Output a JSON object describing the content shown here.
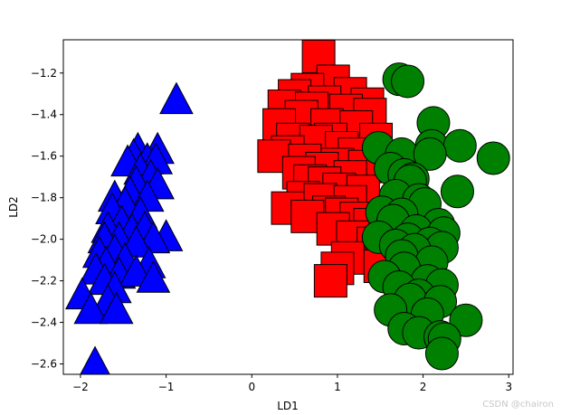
{
  "chart_data": {
    "type": "scatter",
    "title": "",
    "xlabel": "LD1",
    "ylabel": "LD2",
    "xlim": [
      -2.2,
      3.05
    ],
    "ylim": [
      -2.65,
      -1.04
    ],
    "xticks": [
      -2,
      -1,
      0,
      1,
      2,
      3
    ],
    "yticks": [
      -2.6,
      -2.4,
      -2.2,
      -2.0,
      -1.8,
      -1.6,
      -1.4,
      -1.2
    ],
    "grid": false,
    "series": [
      {
        "marker": "triangle",
        "color": "#0000ff",
        "points": [
          [
            -0.88,
            -1.33
          ],
          [
            -1.33,
            -1.57
          ],
          [
            -1.1,
            -1.57
          ],
          [
            -1.38,
            -1.6
          ],
          [
            -1.22,
            -1.62
          ],
          [
            -1.45,
            -1.63
          ],
          [
            -1.12,
            -1.62
          ],
          [
            -1.3,
            -1.67
          ],
          [
            -1.18,
            -1.7
          ],
          [
            -1.35,
            -1.73
          ],
          [
            -1.1,
            -1.74
          ],
          [
            -1.42,
            -1.78
          ],
          [
            -1.6,
            -1.8
          ],
          [
            -1.22,
            -1.8
          ],
          [
            -1.48,
            -1.83
          ],
          [
            -1.63,
            -1.86
          ],
          [
            -1.3,
            -1.88
          ],
          [
            -1.52,
            -1.92
          ],
          [
            -1.68,
            -1.95
          ],
          [
            -1.4,
            -1.96
          ],
          [
            -1.25,
            -1.95
          ],
          [
            -1.55,
            -2.0
          ],
          [
            -1.0,
            -1.99
          ],
          [
            -1.72,
            -2.0
          ],
          [
            -1.15,
            -2.0
          ],
          [
            -1.35,
            -2.02
          ],
          [
            -1.6,
            -2.06
          ],
          [
            -1.78,
            -2.07
          ],
          [
            -1.48,
            -2.1
          ],
          [
            -1.7,
            -2.12
          ],
          [
            -1.2,
            -2.12
          ],
          [
            -1.82,
            -2.15
          ],
          [
            -1.55,
            -2.17
          ],
          [
            -1.35,
            -2.16
          ],
          [
            -1.15,
            -2.19
          ],
          [
            -1.72,
            -2.2
          ],
          [
            -1.6,
            -2.24
          ],
          [
            -1.98,
            -2.27
          ],
          [
            -1.68,
            -2.3
          ],
          [
            -1.88,
            -2.34
          ],
          [
            -1.58,
            -2.34
          ],
          [
            -1.83,
            -2.6
          ]
        ]
      },
      {
        "marker": "square",
        "color": "#ff0000",
        "points": [
          [
            0.78,
            -1.12
          ],
          [
            0.95,
            -1.24
          ],
          [
            0.65,
            -1.28
          ],
          [
            1.15,
            -1.3
          ],
          [
            0.5,
            -1.31
          ],
          [
            0.85,
            -1.34
          ],
          [
            1.35,
            -1.35
          ],
          [
            0.38,
            -1.36
          ],
          [
            0.7,
            -1.37
          ],
          [
            1.1,
            -1.38
          ],
          [
            0.58,
            -1.41
          ],
          [
            1.38,
            -1.4
          ],
          [
            0.32,
            -1.45
          ],
          [
            0.88,
            -1.45
          ],
          [
            1.22,
            -1.46
          ],
          [
            0.48,
            -1.52
          ],
          [
            0.92,
            -1.52
          ],
          [
            1.45,
            -1.52
          ],
          [
            0.75,
            -1.53
          ],
          [
            1.05,
            -1.56
          ],
          [
            0.42,
            -1.58
          ],
          [
            1.2,
            -1.59
          ],
          [
            0.26,
            -1.6
          ],
          [
            0.62,
            -1.62
          ],
          [
            1.0,
            -1.64
          ],
          [
            0.82,
            -1.66
          ],
          [
            1.32,
            -1.65
          ],
          [
            0.55,
            -1.68
          ],
          [
            1.15,
            -1.7
          ],
          [
            0.68,
            -1.72
          ],
          [
            0.85,
            -1.73
          ],
          [
            1.02,
            -1.76
          ],
          [
            1.3,
            -1.77
          ],
          [
            0.6,
            -1.8
          ],
          [
            0.8,
            -1.81
          ],
          [
            1.15,
            -1.82
          ],
          [
            0.42,
            -1.85
          ],
          [
            0.9,
            -1.87
          ],
          [
            1.05,
            -1.88
          ],
          [
            0.65,
            -1.89
          ],
          [
            1.22,
            -1.9
          ],
          [
            1.38,
            -1.93
          ],
          [
            0.95,
            -1.95
          ],
          [
            1.18,
            -1.99
          ],
          [
            1.42,
            -2.02
          ],
          [
            1.52,
            -2.09
          ],
          [
            1.12,
            -2.09
          ],
          [
            1.5,
            -2.13
          ],
          [
            1.0,
            -2.14
          ],
          [
            0.92,
            -2.2
          ]
        ]
      },
      {
        "marker": "circle",
        "color": "#008000",
        "points": [
          [
            1.72,
            -1.23
          ],
          [
            1.82,
            -1.24
          ],
          [
            2.12,
            -1.44
          ],
          [
            2.1,
            -1.55
          ],
          [
            2.43,
            -1.55
          ],
          [
            1.48,
            -1.56
          ],
          [
            1.75,
            -1.59
          ],
          [
            2.08,
            -1.59
          ],
          [
            2.82,
            -1.61
          ],
          [
            1.62,
            -1.66
          ],
          [
            1.78,
            -1.69
          ],
          [
            1.88,
            -1.71
          ],
          [
            1.85,
            -1.72
          ],
          [
            2.4,
            -1.77
          ],
          [
            1.68,
            -1.79
          ],
          [
            1.95,
            -1.81
          ],
          [
            2.02,
            -1.83
          ],
          [
            1.52,
            -1.87
          ],
          [
            1.75,
            -1.88
          ],
          [
            1.65,
            -1.91
          ],
          [
            2.18,
            -1.93
          ],
          [
            1.92,
            -1.96
          ],
          [
            2.24,
            -1.97
          ],
          [
            1.48,
            -1.99
          ],
          [
            1.82,
            -2.0
          ],
          [
            2.08,
            -2.02
          ],
          [
            1.68,
            -2.03
          ],
          [
            2.22,
            -2.04
          ],
          [
            1.9,
            -2.05
          ],
          [
            1.75,
            -2.08
          ],
          [
            2.1,
            -2.11
          ],
          [
            1.78,
            -2.14
          ],
          [
            1.55,
            -2.18
          ],
          [
            2.05,
            -2.2
          ],
          [
            2.22,
            -2.22
          ],
          [
            1.72,
            -2.23
          ],
          [
            1.95,
            -2.27
          ],
          [
            1.85,
            -2.29
          ],
          [
            2.2,
            -2.3
          ],
          [
            1.62,
            -2.34
          ],
          [
            2.05,
            -2.36
          ],
          [
            2.5,
            -2.39
          ],
          [
            1.78,
            -2.43
          ],
          [
            1.95,
            -2.45
          ],
          [
            2.2,
            -2.47
          ],
          [
            2.25,
            -2.48
          ],
          [
            2.22,
            -2.55
          ]
        ]
      }
    ]
  },
  "watermark": "CSDN @chairon"
}
